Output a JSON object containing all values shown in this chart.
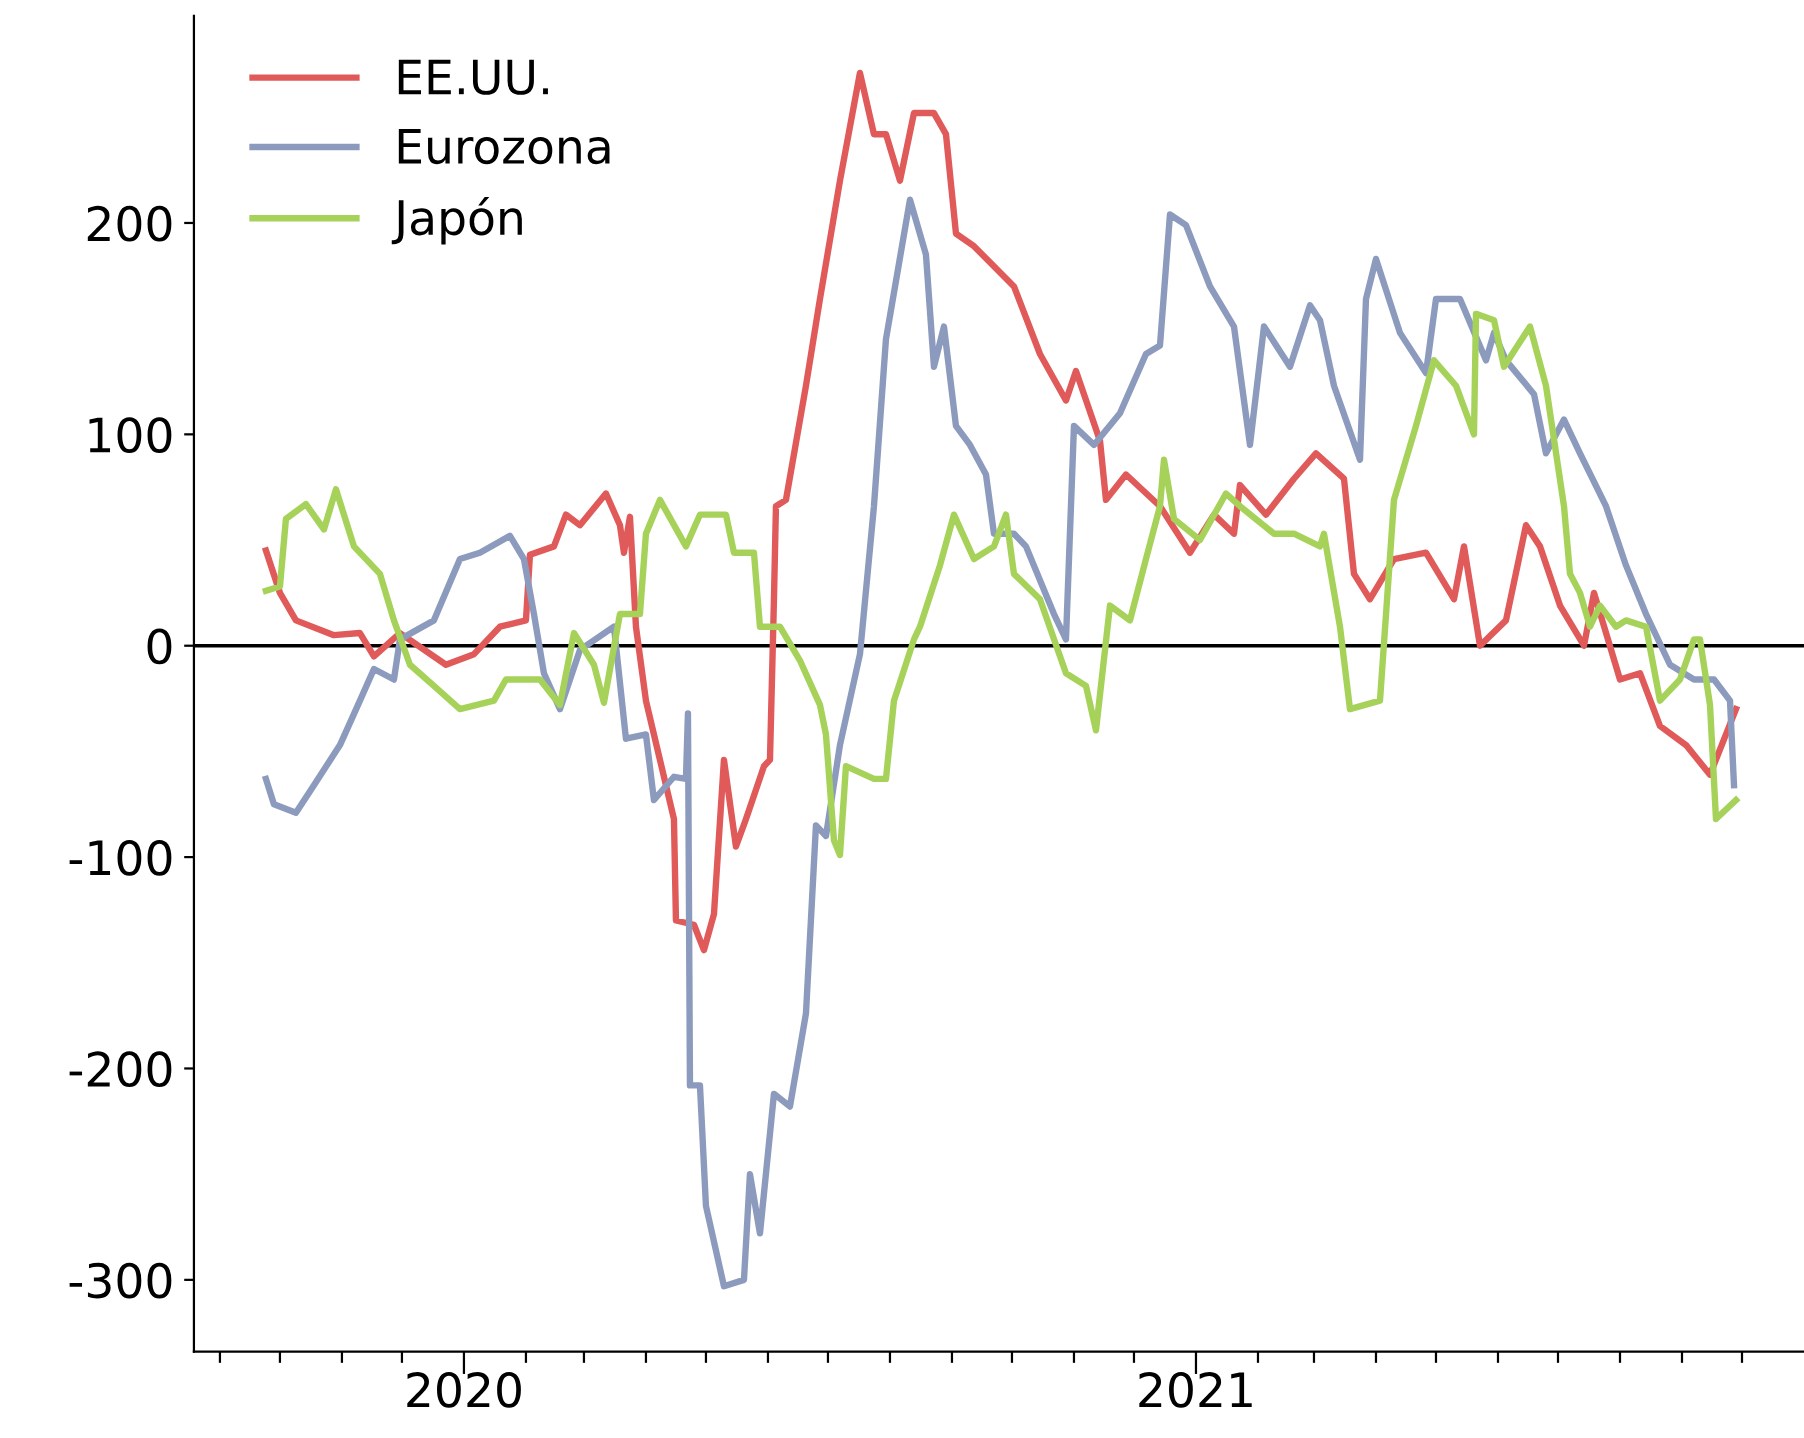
{
  "chart_data": {
    "type": "line",
    "xlim": [
      "2019-08-19",
      "2021-11-01"
    ],
    "ylim": [
      -334,
      298
    ],
    "yticks": [
      -300,
      -200,
      -100,
      0,
      100,
      200
    ],
    "xticks": [
      {
        "value": "2019-09-01",
        "label": null
      },
      {
        "value": "2019-10-01",
        "label": null
      },
      {
        "value": "2019-11-01",
        "label": null
      },
      {
        "value": "2019-12-01",
        "label": null
      },
      {
        "value": "2020-01-01",
        "label": "2020"
      },
      {
        "value": "2020-02-01",
        "label": null
      },
      {
        "value": "2020-03-01",
        "label": null
      },
      {
        "value": "2020-04-01",
        "label": null
      },
      {
        "value": "2020-05-01",
        "label": null
      },
      {
        "value": "2020-06-01",
        "label": null
      },
      {
        "value": "2020-07-01",
        "label": null
      },
      {
        "value": "2020-08-01",
        "label": null
      },
      {
        "value": "2020-09-01",
        "label": null
      },
      {
        "value": "2020-10-01",
        "label": null
      },
      {
        "value": "2020-11-01",
        "label": null
      },
      {
        "value": "2020-12-01",
        "label": null
      },
      {
        "value": "2021-01-01",
        "label": "2021"
      },
      {
        "value": "2021-02-01",
        "label": null
      },
      {
        "value": "2021-03-01",
        "label": null
      },
      {
        "value": "2021-04-01",
        "label": null
      },
      {
        "value": "2021-05-01",
        "label": null
      },
      {
        "value": "2021-06-01",
        "label": null
      },
      {
        "value": "2021-07-01",
        "label": null
      },
      {
        "value": "2021-08-01",
        "label": null
      },
      {
        "value": "2021-09-01",
        "label": null
      },
      {
        "value": "2021-10-01",
        "label": null
      }
    ],
    "grid": false,
    "legend": "top left",
    "line_style": "solid",
    "ref_lines": [
      {
        "axis": "y",
        "value": 0,
        "label": null,
        "color": "#000000"
      }
    ],
    "series": [
      {
        "name": "EE.UU.",
        "color": "#e05a5a",
        "x": [
          "2019-09-24",
          "2019-10-01",
          "2019-10-09",
          "2019-10-28",
          "2019-11-10",
          "2019-11-17",
          "2019-11-30",
          "2019-12-23",
          "2020-01-06",
          "2020-01-19",
          "2020-02-01",
          "2020-02-03",
          "2020-02-15",
          "2020-02-21",
          "2020-02-28",
          "2020-03-12",
          "2020-03-19",
          "2020-03-21",
          "2020-03-24",
          "2020-03-27",
          "2020-04-01",
          "2020-04-15",
          "2020-04-16",
          "2020-04-25",
          "2020-04-30",
          "2020-05-05",
          "2020-05-10",
          "2020-05-16",
          "2020-05-21",
          "2020-05-30",
          "2020-06-02",
          "2020-06-04",
          "2020-06-05",
          "2020-06-10",
          "2020-06-20",
          "2020-06-27",
          "2020-07-07",
          "2020-07-17",
          "2020-07-24",
          "2020-07-30",
          "2020-08-06",
          "2020-08-13",
          "2020-08-23",
          "2020-08-29",
          "2020-09-03",
          "2020-09-12",
          "2020-10-02",
          "2020-10-15",
          "2020-10-28",
          "2020-11-02",
          "2020-11-14",
          "2020-11-17",
          "2020-11-27",
          "2020-12-14",
          "2020-12-29",
          "2021-01-10",
          "2021-01-20",
          "2021-01-23",
          "2021-02-05",
          "2021-02-19",
          "2021-03-02",
          "2021-03-16",
          "2021-03-21",
          "2021-03-29",
          "2021-04-10",
          "2021-04-26",
          "2021-05-10",
          "2021-05-15",
          "2021-05-23",
          "2021-06-05",
          "2021-06-15",
          "2021-06-22",
          "2021-07-02",
          "2021-07-14",
          "2021-07-19",
          "2021-08-01",
          "2021-08-11",
          "2021-08-21",
          "2021-09-03",
          "2021-09-15",
          "2021-09-28"
        ],
        "values": [
          45,
          25,
          12,
          5,
          6,
          -5,
          6,
          -9,
          -4,
          9,
          12,
          43,
          47,
          62,
          57,
          72,
          57,
          44,
          61,
          9,
          -26,
          -82,
          -130,
          -132,
          -144,
          -127,
          -54,
          -95,
          -82,
          -57,
          -54,
          22,
          66,
          69,
          123,
          164,
          220,
          271,
          242,
          242,
          220,
          252,
          252,
          242,
          195,
          189,
          170,
          138,
          116,
          130,
          97,
          69,
          81,
          66,
          44,
          62,
          53,
          76,
          62,
          79,
          91,
          79,
          34,
          22,
          41,
          44,
          22,
          47,
          0,
          12,
          57,
          47,
          19,
          0,
          25,
          -16,
          -13,
          -38,
          -47,
          -61,
          -30
        ]
      },
      {
        "name": "Eurozona",
        "color": "#8c9bbd",
        "x": [
          "2019-09-24",
          "2019-09-28",
          "2019-10-09",
          "2019-10-18",
          "2019-10-31",
          "2019-11-10",
          "2019-11-17",
          "2019-11-27",
          "2019-11-30",
          "2019-12-17",
          "2019-12-30",
          "2020-01-09",
          "2020-01-24",
          "2020-01-31",
          "2020-02-05",
          "2020-02-10",
          "2020-02-18",
          "2020-02-28",
          "2020-03-16",
          "2020-03-22",
          "2020-04-01",
          "2020-04-05",
          "2020-04-15",
          "2020-04-21",
          "2020-04-22",
          "2020-04-23",
          "2020-04-28",
          "2020-05-01",
          "2020-05-10",
          "2020-05-20",
          "2020-05-23",
          "2020-05-28",
          "2020-06-04",
          "2020-06-12",
          "2020-06-20",
          "2020-06-25",
          "2020-06-30",
          "2020-07-07",
          "2020-07-17",
          "2020-07-24",
          "2020-07-30",
          "2020-08-11",
          "2020-08-19",
          "2020-08-23",
          "2020-08-28",
          "2020-09-03",
          "2020-09-10",
          "2020-09-18",
          "2020-09-22",
          "2020-10-02",
          "2020-10-08",
          "2020-10-22",
          "2020-10-28",
          "2020-11-01",
          "2020-11-11",
          "2020-11-24",
          "2020-12-07",
          "2020-12-14",
          "2020-12-19",
          "2020-12-27",
          "2021-01-08",
          "2021-01-20",
          "2021-01-28",
          "2021-02-04",
          "2021-02-17",
          "2021-02-27",
          "2021-03-04",
          "2021-03-11",
          "2021-03-24",
          "2021-03-27",
          "2021-04-01",
          "2021-04-13",
          "2021-04-26",
          "2021-05-01",
          "2021-05-13",
          "2021-05-26",
          "2021-05-30",
          "2021-06-05",
          "2021-06-19",
          "2021-06-25",
          "2021-07-04",
          "2021-07-12",
          "2021-07-25",
          "2021-08-04",
          "2021-08-14",
          "2021-08-26",
          "2021-09-07",
          "2021-09-17",
          "2021-09-25",
          "2021-09-27"
        ],
        "values": [
          -63,
          -75,
          -79,
          -66,
          -47,
          -26,
          -11,
          -16,
          3,
          12,
          41,
          44,
          52,
          41,
          15,
          -13,
          -30,
          -2,
          9,
          -44,
          -42,
          -73,
          -62,
          -63,
          -32,
          -208,
          -208,
          -265,
          -303,
          -300,
          -250,
          -278,
          -212,
          -218,
          -174,
          -85,
          -90,
          -47,
          -4,
          66,
          145,
          211,
          185,
          132,
          151,
          104,
          95,
          81,
          53,
          53,
          47,
          15,
          3,
          104,
          95,
          110,
          138,
          142,
          204,
          199,
          170,
          151,
          95,
          151,
          132,
          161,
          154,
          123,
          88,
          164,
          183,
          148,
          129,
          164,
          164,
          135,
          148,
          135,
          119,
          91,
          107,
          91,
          66,
          38,
          15,
          -9,
          -16,
          -16,
          -26,
          -66
        ]
      },
      {
        "name": "Japón",
        "color": "#a6d25a",
        "x": [
          "2019-09-24",
          "2019-10-01",
          "2019-10-04",
          "2019-10-14",
          "2019-10-23",
          "2019-10-29",
          "2019-11-07",
          "2019-11-20",
          "2019-11-27",
          "2019-12-05",
          "2019-12-17",
          "2019-12-30",
          "2020-01-16",
          "2020-01-22",
          "2020-02-08",
          "2020-02-18",
          "2020-02-25",
          "2020-03-06",
          "2020-03-11",
          "2020-03-19",
          "2020-03-29",
          "2020-04-01",
          "2020-04-08",
          "2020-04-21",
          "2020-04-28",
          "2020-05-11",
          "2020-05-15",
          "2020-05-25",
          "2020-05-28",
          "2020-06-07",
          "2020-06-17",
          "2020-06-27",
          "2020-06-30",
          "2020-07-04",
          "2020-07-07",
          "2020-07-10",
          "2020-07-24",
          "2020-07-30",
          "2020-08-03",
          "2020-08-13",
          "2020-08-16",
          "2020-08-26",
          "2020-09-02",
          "2020-09-12",
          "2020-09-22",
          "2020-09-28",
          "2020-10-02",
          "2020-10-15",
          "2020-10-28",
          "2020-11-07",
          "2020-11-12",
          "2020-11-19",
          "2020-11-29",
          "2020-12-07",
          "2020-12-14",
          "2020-12-16",
          "2020-12-21",
          "2021-01-03",
          "2021-01-16",
          "2021-01-23",
          "2021-02-09",
          "2021-02-19",
          "2021-03-04",
          "2021-03-06",
          "2021-03-14",
          "2021-03-19",
          "2021-04-03",
          "2021-04-10",
          "2021-04-21",
          "2021-04-30",
          "2021-05-11",
          "2021-05-20",
          "2021-05-21",
          "2021-05-30",
          "2021-06-04",
          "2021-06-17",
          "2021-06-25",
          "2021-07-04",
          "2021-07-07",
          "2021-07-12",
          "2021-07-17",
          "2021-07-22",
          "2021-07-30",
          "2021-08-04",
          "2021-08-14",
          "2021-08-21",
          "2021-08-31",
          "2021-09-07",
          "2021-09-10",
          "2021-09-15",
          "2021-09-18",
          "2021-09-28"
        ],
        "values": [
          26,
          28,
          60,
          67,
          55,
          74,
          47,
          34,
          12,
          -9,
          -19,
          -30,
          -26,
          -16,
          -16,
          -28,
          6,
          -9,
          -27,
          15,
          15,
          53,
          69,
          47,
          62,
          62,
          44,
          44,
          9,
          9,
          -7,
          -28,
          -42,
          -92,
          -99,
          -57,
          -63,
          -63,
          -26,
          3,
          9,
          38,
          62,
          41,
          47,
          62,
          34,
          22,
          -13,
          -19,
          -40,
          19,
          12,
          41,
          66,
          88,
          60,
          50,
          72,
          66,
          53,
          53,
          47,
          53,
          9,
          -30,
          -26,
          69,
          104,
          135,
          123,
          100,
          157,
          154,
          132,
          151,
          123,
          66,
          34,
          25,
          9,
          19,
          9,
          12,
          9,
          -26,
          -16,
          3,
          3,
          -28,
          -82,
          -73
        ]
      }
    ]
  }
}
